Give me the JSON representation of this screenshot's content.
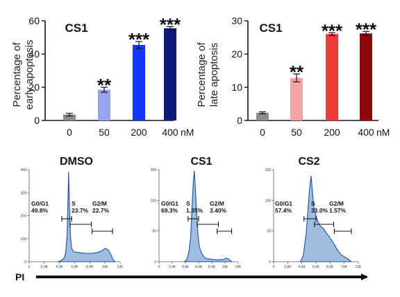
{
  "chart_data": [
    {
      "type": "bar",
      "title": "CS1",
      "ylabel": [
        "Percentage of",
        "early apoptosis"
      ],
      "categories": [
        "0",
        "50",
        "200",
        "400"
      ],
      "unit": "nM",
      "values": [
        3.5,
        18.5,
        45.5,
        55.5
      ],
      "errors": [
        0.8,
        1.5,
        2.0,
        1.0
      ],
      "significance": [
        "",
        "**",
        "***",
        "***"
      ],
      "ylim": [
        0,
        60
      ],
      "yticks": [
        0,
        20,
        40,
        60
      ],
      "colors": [
        "#8c8c8c",
        "#9aa2f2",
        "#1238ff",
        "#101878"
      ]
    },
    {
      "type": "bar",
      "title": "CS1",
      "ylabel": [
        "Percentage of",
        "late apoptosis"
      ],
      "categories": [
        "0",
        "50",
        "200",
        "400"
      ],
      "unit": "nM",
      "values": [
        2.3,
        12.8,
        26.0,
        26.2
      ],
      "errors": [
        0.3,
        1.2,
        0.4,
        0.6
      ],
      "significance": [
        "",
        "**",
        "***",
        "***"
      ],
      "ylim": [
        0,
        30
      ],
      "yticks": [
        0,
        10,
        20,
        30
      ],
      "colors": [
        "#8c8c8c",
        "#f4a4a4",
        "#f03a3a",
        "#8c0a0a"
      ]
    },
    {
      "type": "area",
      "title": "DMSO",
      "yticks": [
        "0",
        "100",
        "200",
        "300",
        "400"
      ],
      "xticks": [
        "0",
        "2.0K",
        "4.0K",
        "6.0K",
        "8.0K",
        "10K",
        "12K"
      ],
      "gates": [
        {
          "name": "G0/G1",
          "value": "49.8%"
        },
        {
          "name": "S",
          "value": "23.7%"
        },
        {
          "name": "G2/M",
          "value": "22.7%"
        }
      ],
      "ymax": 400,
      "x": [
        3.8,
        4.2,
        4.6,
        4.8,
        5.0,
        5.1,
        5.2,
        5.3,
        5.45,
        5.6,
        5.8,
        6.0,
        6.5,
        7.0,
        7.5,
        8.0,
        8.5,
        9.0,
        9.5,
        9.8,
        10.0,
        10.2,
        10.5,
        10.8,
        11.0,
        11.3
      ],
      "y": [
        0,
        4,
        15,
        35,
        110,
        250,
        390,
        250,
        110,
        60,
        45,
        42,
        40,
        38,
        36,
        36,
        37,
        40,
        46,
        52,
        58,
        56,
        48,
        30,
        12,
        0
      ]
    },
    {
      "type": "area",
      "title": "CS1",
      "yticks": [
        "0",
        "50",
        "100",
        "150"
      ],
      "xticks": [
        "0",
        "2.0K",
        "4.0K",
        "6.0K",
        "8.0K",
        "10K",
        "12K"
      ],
      "gates": [
        {
          "name": "G0/G1",
          "value": "69.3%"
        },
        {
          "name": "S",
          "value": "1.35%"
        },
        {
          "name": "G2/M",
          "value": "3.40%"
        }
      ],
      "ymax": 150,
      "x": [
        3.8,
        4.2,
        4.5,
        4.8,
        5.0,
        5.2,
        5.35,
        5.5,
        5.7,
        5.9,
        6.1,
        6.4,
        6.8,
        7.2,
        8.0,
        9.0,
        9.8,
        10.2,
        10.6,
        11.0
      ],
      "y": [
        0,
        3,
        15,
        40,
        90,
        130,
        148,
        120,
        80,
        45,
        25,
        15,
        8,
        5,
        4,
        3,
        4,
        6,
        4,
        0
      ]
    },
    {
      "type": "area",
      "title": "CS2",
      "yticks": [
        "0",
        "50",
        "100",
        "150"
      ],
      "xticks": [
        "0",
        "2.0K",
        "4.0K",
        "6.0K",
        "8.0K",
        "10K",
        "12K"
      ],
      "gates": [
        {
          "name": "G0/G1",
          "value": "57.4%"
        },
        {
          "name": "S",
          "value": "33.0%"
        },
        {
          "name": "G2/M",
          "value": "1.57%"
        }
      ],
      "ymax": 150,
      "x": [
        3.8,
        4.2,
        4.6,
        4.9,
        5.1,
        5.3,
        5.5,
        5.7,
        6.0,
        6.3,
        6.6,
        7.0,
        7.4,
        7.8,
        8.2,
        8.6,
        9.0,
        9.5,
        10.0,
        10.5,
        11.0
      ],
      "y": [
        0,
        10,
        45,
        90,
        120,
        140,
        115,
        90,
        75,
        65,
        58,
        55,
        48,
        42,
        35,
        28,
        20,
        12,
        8,
        5,
        0
      ]
    }
  ],
  "axis_label": "PI"
}
